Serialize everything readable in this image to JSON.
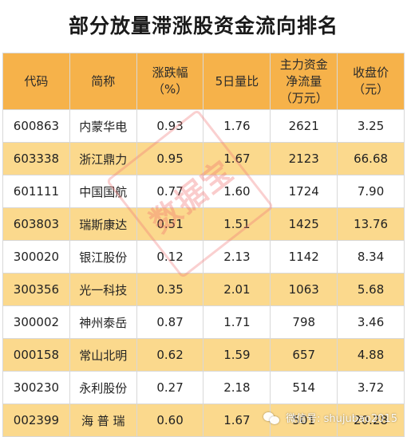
{
  "title": "部分放量滞涨股资金流向排名",
  "headers": [
    "代码",
    "简称",
    "涨跌幅\n（%）",
    "5日量比",
    "主力资金\n净流量\n（万元）",
    "收盘价\n（元）"
  ],
  "rows": [
    [
      "600863",
      "内蒙华电",
      "0.93",
      "1.76",
      "2621",
      "3.25"
    ],
    [
      "603338",
      "浙江鼎力",
      "0.95",
      "1.67",
      "2123",
      "66.68"
    ],
    [
      "601111",
      "中国国航",
      "0.77",
      "1.60",
      "1724",
      "7.90"
    ],
    [
      "603803",
      "瑞斯康达",
      "0.51",
      "1.51",
      "1425",
      "13.76"
    ],
    [
      "300020",
      "银江股份",
      "0.12",
      "2.13",
      "1142",
      "8.34"
    ],
    [
      "300356",
      "光一科技",
      "0.35",
      "2.01",
      "1063",
      "5.68"
    ],
    [
      "300002",
      "神州泰岳",
      "0.87",
      "1.71",
      "798",
      "3.46"
    ],
    [
      "000158",
      "常山北明",
      "0.62",
      "1.59",
      "657",
      "4.88"
    ],
    [
      "300230",
      "永利股份",
      "0.27",
      "2.18",
      "514",
      "3.72"
    ],
    [
      "002399",
      "海 普 瑞",
      "0.60",
      "1.67",
      "501",
      "20.28"
    ]
  ],
  "watermark": {
    "stamp_text": "数据宝",
    "footer_text": "微信号: shujubao2015"
  },
  "colors": {
    "header_bg": "#f6b24a",
    "stripe_bg": "#fbd98d",
    "row_bg": "#ffffff"
  }
}
